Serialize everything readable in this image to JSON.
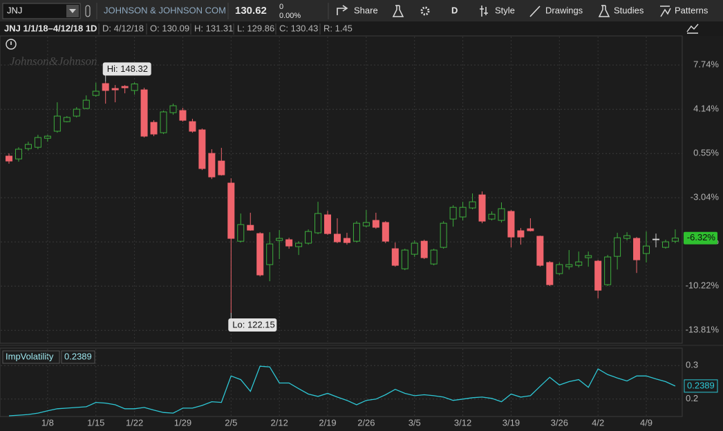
{
  "toolbar": {
    "symbol": "JNJ",
    "company": "JOHNSON & JOHNSON COM",
    "last": "130.62",
    "change": "0",
    "change_pct": "0.00%",
    "buttons": [
      "Share",
      "D",
      "Style",
      "Drawings",
      "Studies",
      "Patterns"
    ]
  },
  "info_bar": {
    "title": "JNJ 1/1/18–4/12/18 1D",
    "fields": [
      "D: 4/12/18",
      "O: 130.09",
      "H: 131.31",
      "L: 129.86",
      "C: 130.43",
      "R: 1.45"
    ]
  },
  "watermark": "Johnson&Johnson",
  "chart_data": [
    {
      "type": "candlestick",
      "categories": [
        null,
        null,
        null,
        null,
        "1/8",
        null,
        null,
        null,
        null,
        "1/15",
        null,
        null,
        null,
        "1/22",
        null,
        null,
        null,
        null,
        "1/29",
        null,
        null,
        null,
        null,
        "2/5",
        null,
        null,
        null,
        null,
        "2/12",
        null,
        null,
        null,
        null,
        "2/19",
        null,
        null,
        null,
        "2/26",
        null,
        null,
        null,
        null,
        "3/5",
        null,
        null,
        null,
        null,
        "3/12",
        null,
        null,
        null,
        null,
        "3/19",
        null,
        null,
        null,
        null,
        "3/26",
        null,
        null,
        null,
        "4/2",
        null,
        null,
        null,
        null,
        "4/9",
        null,
        null,
        null
      ],
      "open": [
        0.34,
        0.11,
        0.95,
        1.06,
        1.79,
        2.36,
        3.14,
        3.59,
        4.21,
        5.27,
        6.23,
        5.83,
        6.0,
        5.67,
        5.72,
        3.08,
        2.24,
        3.87,
        4.04,
        3.14,
        2.47,
        0.56,
        -0.06,
        -1.85,
        -6.57,
        -5.28,
        -5.95,
        -8.47,
        -6.51,
        -6.45,
        -7.01,
        -6.73,
        -5.89,
        -4.43,
        -6.0,
        -6.34,
        -6.57,
        -5.33,
        -4.88,
        -5.05,
        -7.18,
        -8.81,
        -7.63,
        -6.57,
        -8.42,
        -7.07,
        -4.77,
        -4.6,
        -3.87,
        -2.81,
        -4.77,
        -4.88,
        -4.15,
        -5.72,
        -5.56,
        -6.17,
        -8.3,
        -9.2,
        -8.64,
        -8.53,
        -7.91,
        -8.19,
        -10.1,
        -7.8,
        -6.34,
        -6.34,
        -7.57,
        -6.4,
        -7.07,
        -6.57
      ],
      "high": [
        0.56,
        1.06,
        1.51,
        2.07,
        2.07,
        4.71,
        3.59,
        4.32,
        5.27,
        6.3,
        6.38,
        6.11,
        6.11,
        6.33,
        5.89,
        3.25,
        4.04,
        4.6,
        4.26,
        3.37,
        2.58,
        0.9,
        1.01,
        -1.46,
        -4.32,
        -4.26,
        -5.84,
        -5.84,
        -5.67,
        -6.29,
        -6.57,
        -5.61,
        -3.37,
        -4.1,
        -4.71,
        -5.89,
        -4.94,
        -4.04,
        -4.26,
        -4.94,
        -6.68,
        -7.18,
        -6.51,
        -6.45,
        -7.18,
        -4.94,
        -3.65,
        -3.37,
        -2.69,
        -2.53,
        -4.15,
        -3.42,
        -4.04,
        -5.5,
        -4.71,
        -6.12,
        -8.19,
        -8.3,
        -7.29,
        -7.41,
        -7.41,
        -8.08,
        -7.69,
        -5.89,
        -5.84,
        -6.23,
        -5.78,
        -5.95,
        -6.45,
        -5.61
      ],
      "low": [
        -0.28,
        -0.11,
        0.78,
        0.9,
        1.51,
        2.24,
        3.08,
        3.48,
        4.15,
        5.16,
        4.6,
        4.71,
        5.44,
        5.33,
        1.85,
        1.96,
        2.13,
        3.7,
        3.14,
        2.24,
        -0.79,
        -1.52,
        -1.24,
        -12.39,
        -6.68,
        -5.72,
        -9.43,
        -9.82,
        -8.02,
        -7.18,
        -7.69,
        -6.85,
        -6.0,
        -6.06,
        -6.73,
        -6.85,
        -6.68,
        -5.44,
        -5.56,
        -6.73,
        -8.64,
        -8.92,
        -7.85,
        -8.02,
        -8.53,
        -7.18,
        -5.39,
        -4.88,
        -3.98,
        -5.11,
        -4.88,
        -5.05,
        -7.07,
        -6.85,
        -5.78,
        -8.64,
        -10.21,
        -9.31,
        -8.87,
        -8.7,
        -8.64,
        -11.22,
        -10.21,
        -8.87,
        -6.51,
        -9.15,
        -8.3,
        -7.07,
        -7.18,
        -6.73
      ],
      "close": [
        -0.06,
        0.9,
        1.29,
        1.85,
        1.96,
        3.59,
        3.48,
        4.15,
        4.88,
        5.61,
        5.67,
        5.72,
        5.89,
        6.2,
        1.96,
        2.13,
        3.93,
        4.43,
        3.25,
        2.36,
        -0.67,
        -1.35,
        -1.18,
        -6.34,
        -5.22,
        -5.67,
        -9.31,
        -6.79,
        -6.34,
        -6.96,
        -6.73,
        -5.78,
        -4.32,
        -5.95,
        -6.62,
        -6.68,
        -5.11,
        -5.05,
        -5.44,
        -6.57,
        -8.53,
        -7.29,
        -6.73,
        -7.91,
        -7.29,
        -5.11,
        -3.82,
        -3.82,
        -3.37,
        -4.94,
        -4.38,
        -3.93,
        -6.23,
        -6.23,
        -5.72,
        -8.53,
        -10.1,
        -8.47,
        -8.47,
        -8.25,
        -7.74,
        -10.55,
        -7.85,
        -6.29,
        -6.12,
        -8.08,
        -6.96,
        -6.4,
        -6.62,
        -6.32
      ],
      "up_color": "#3dae3d",
      "down_color": "#f0646c",
      "flat_color": "#d0d0d0",
      "annotations": {
        "high": "Hi: 148.32",
        "low": "Lo: 122.15"
      },
      "last_value": -6.32,
      "last_label": "-6.32%",
      "last_color": "#2fc02f",
      "ylim": [
        -14.86,
        10.1
      ],
      "yticks": [
        {
          "value": -13.81,
          "label": "-13.81%"
        },
        {
          "value": -10.22,
          "label": "-10.22%"
        },
        {
          "value": -6.63,
          "label": "-6.63%"
        },
        {
          "value": -3.04,
          "label": "-3.04%"
        },
        {
          "value": 0.55,
          "label": "0.55%"
        },
        {
          "value": 4.14,
          "label": "4.14%"
        },
        {
          "value": 7.74,
          "label": "7.74%"
        }
      ],
      "grid": true
    },
    {
      "type": "line",
      "title": "ImpVolatility",
      "color": "#2ec8d6",
      "last_label": "0.2389",
      "values": [
        0.15,
        0.152,
        0.154,
        0.158,
        0.165,
        0.171,
        0.173,
        0.175,
        0.177,
        0.19,
        0.188,
        0.183,
        0.171,
        0.171,
        0.175,
        0.167,
        0.16,
        0.158,
        0.173,
        0.173,
        0.181,
        0.192,
        0.19,
        0.269,
        0.258,
        0.223,
        0.298,
        0.296,
        0.248,
        0.248,
        0.231,
        0.215,
        0.208,
        0.217,
        0.206,
        0.196,
        0.183,
        0.196,
        0.2,
        0.213,
        0.229,
        0.217,
        0.21,
        0.213,
        0.21,
        0.206,
        0.196,
        0.2,
        0.204,
        0.206,
        0.202,
        0.192,
        0.215,
        0.206,
        0.21,
        0.238,
        0.265,
        0.242,
        0.252,
        0.258,
        0.235,
        0.29,
        0.273,
        0.263,
        0.254,
        0.269,
        0.269,
        0.26,
        0.252,
        0.2389
      ],
      "ylim": [
        0.148,
        0.352
      ],
      "yticks": [
        0.2,
        0.3
      ],
      "grid": true
    }
  ]
}
